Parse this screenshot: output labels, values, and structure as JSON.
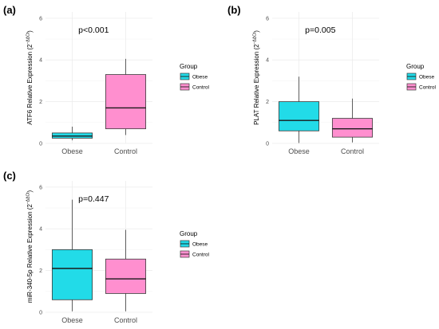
{
  "colors": {
    "obese": "#22dbe8",
    "control": "#ff8fcf",
    "box_stroke": "#3a3a3a",
    "grid": "#ececec"
  },
  "chart_data": [
    {
      "type": "box",
      "panel_label": "(a)",
      "ylabel_main": "ATF6 Relative Expression (2",
      "ylabel_sup": "−ΔΔCt",
      "ylabel_end": ")",
      "annotation": "p<0.001",
      "categories": [
        "Obese",
        "Control"
      ],
      "ylim": [
        0,
        6.3
      ],
      "yticks": [
        "0",
        "2",
        "4",
        "6"
      ],
      "legend": {
        "title": "Group",
        "entries": [
          "Obese",
          "Control"
        ]
      },
      "boxes": [
        {
          "group": "Obese",
          "whisker_low": 0.15,
          "q1": 0.25,
          "median": 0.35,
          "q3": 0.5,
          "whisker_high": 0.8
        },
        {
          "group": "Control",
          "whisker_low": 0.4,
          "q1": 0.7,
          "median": 1.7,
          "q3": 3.3,
          "whisker_high": 4.05
        }
      ]
    },
    {
      "type": "box",
      "panel_label": "(b)",
      "ylabel_main": "PLAT Relative Expression (2",
      "ylabel_sup": "−ΔΔCt",
      "ylabel_end": ")",
      "annotation": "p=0.005",
      "categories": [
        "Obese",
        "Control"
      ],
      "ylim": [
        0,
        6.3
      ],
      "yticks": [
        "0",
        "2",
        "4",
        "6"
      ],
      "legend": {
        "title": "Group",
        "entries": [
          "Obese",
          "Control"
        ]
      },
      "boxes": [
        {
          "group": "Obese",
          "whisker_low": 0.02,
          "q1": 0.6,
          "median": 1.1,
          "q3": 2.0,
          "whisker_high": 3.2
        },
        {
          "group": "Control",
          "whisker_low": 0.05,
          "q1": 0.3,
          "median": 0.7,
          "q3": 1.2,
          "whisker_high": 2.15
        }
      ]
    },
    {
      "type": "box",
      "panel_label": "(c)",
      "ylabel_main": "miR-340-5p Relative Expression (2",
      "ylabel_sup": "−ΔΔCt",
      "ylabel_end": ")",
      "annotation": "p=0.447",
      "categories": [
        "Obese",
        "Control"
      ],
      "ylim": [
        0,
        6.3
      ],
      "yticks": [
        "0",
        "2",
        "4",
        "6"
      ],
      "legend": {
        "title": "Group",
        "entries": [
          "Obese",
          "Control"
        ]
      },
      "boxes": [
        {
          "group": "Obese",
          "whisker_low": 0.05,
          "q1": 0.6,
          "median": 2.1,
          "q3": 3.0,
          "whisker_high": 5.4
        },
        {
          "group": "Control",
          "whisker_low": 0.05,
          "q1": 0.9,
          "median": 1.6,
          "q3": 2.55,
          "whisker_high": 3.95
        }
      ]
    }
  ]
}
